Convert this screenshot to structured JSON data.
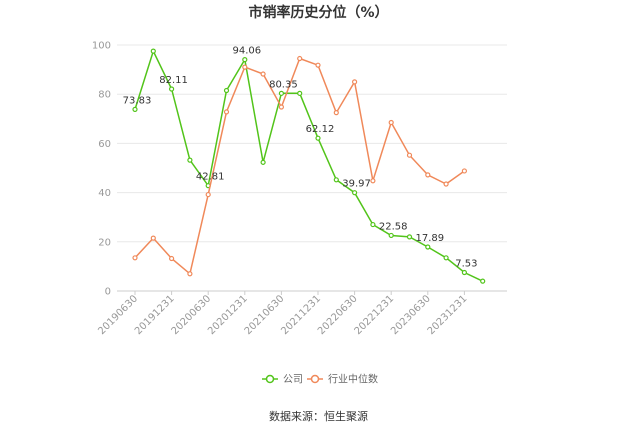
{
  "chart_data": {
    "type": "line",
    "title": "市销率历史分位（%）",
    "xlabel": "",
    "ylabel": "",
    "ylim": [
      0,
      100
    ],
    "y_ticks": [
      0,
      20,
      40,
      60,
      80,
      100
    ],
    "grid": true,
    "legend_position": "bottom",
    "x": [
      "20190630",
      "20190930",
      "20191231",
      "20200331",
      "20200630",
      "20200930",
      "20201231",
      "20210331",
      "20210630",
      "20210930",
      "20211231",
      "20220331",
      "20220630",
      "20220930",
      "20221231",
      "20230331",
      "20230630",
      "20230930",
      "20231231",
      "20240331",
      "20240630"
    ],
    "x_tick_labels": [
      "20190630",
      "20191231",
      "20200630",
      "20201231",
      "20210630",
      "20211231",
      "20220630",
      "20221231",
      "20230630",
      "20231231"
    ],
    "series": [
      {
        "name": "公司",
        "color": "#52c41a",
        "values": [
          73.83,
          97.5,
          82.11,
          53.2,
          42.81,
          81.5,
          94.06,
          52.3,
          80.35,
          80.35,
          62.12,
          45.2,
          39.97,
          27.0,
          22.58,
          22.0,
          17.89,
          13.5,
          7.53,
          4.0,
          null
        ],
        "data_labels": {
          "0": "73.83",
          "2": "82.11",
          "4": "42.81",
          "6": "94.06",
          "8": "80.35",
          "10": "62.12",
          "12": "39.97",
          "14": "22.58",
          "16": "17.89",
          "18": "7.53"
        }
      },
      {
        "name": "行业中位数",
        "color": "#f0895a",
        "values": [
          13.5,
          21.5,
          13.2,
          7.0,
          39.2,
          72.8,
          91.0,
          88.2,
          74.8,
          94.5,
          91.8,
          72.5,
          85.0,
          44.8,
          68.5,
          55.2,
          47.2,
          43.5,
          48.8,
          null,
          null
        ]
      }
    ]
  },
  "source": "数据来源：恒生聚源"
}
